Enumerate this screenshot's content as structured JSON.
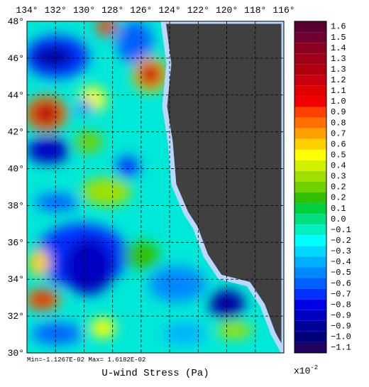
{
  "map": {
    "title": "U-wind Stress (Pa)",
    "stats": "Min=-1.1267E-02  Max= 1.6182E-02",
    "scale_label": "x10",
    "scale_exponent": "-2",
    "lon_ticks": [
      "134°",
      "132°",
      "130°",
      "128°",
      "126°",
      "124°",
      "122°",
      "120°",
      "118°",
      "116°"
    ],
    "lat_ticks": [
      "48°",
      "46°",
      "44°",
      "42°",
      "40°",
      "38°",
      "36°",
      "34°",
      "32°",
      "30°"
    ],
    "colorbar": {
      "labels": [
        "1.6",
        "1.5",
        "1.4",
        "1.3",
        "1.3",
        "1.2",
        "1.1",
        "1.0",
        "0.9",
        "0.8",
        "0.7",
        "0.6",
        "0.5",
        "0.4",
        "0.3",
        "0.2",
        "0.2",
        "0.1",
        "0.0",
        "−0.1",
        "−0.2",
        "−0.3",
        "−0.4",
        "−0.5",
        "−0.6",
        "−0.7",
        "−0.8",
        "−0.9",
        "−0.9",
        "−1.0",
        "−1.1"
      ],
      "colors": [
        "#5a0030",
        "#700030",
        "#8a0020",
        "#a00018",
        "#b00010",
        "#c80010",
        "#e00000",
        "#f00000",
        "#ff4000",
        "#ff7000",
        "#ffa000",
        "#ffd000",
        "#ffff00",
        "#d0f000",
        "#a0e000",
        "#70d000",
        "#30c000",
        "#00d040",
        "#00e080",
        "#00f0c0",
        "#00ffff",
        "#00d8ff",
        "#00b0ff",
        "#0088ff",
        "#0060ff",
        "#0030ff",
        "#0000e8",
        "#0000c0",
        "#000098",
        "#000078",
        "#200060"
      ]
    }
  }
}
